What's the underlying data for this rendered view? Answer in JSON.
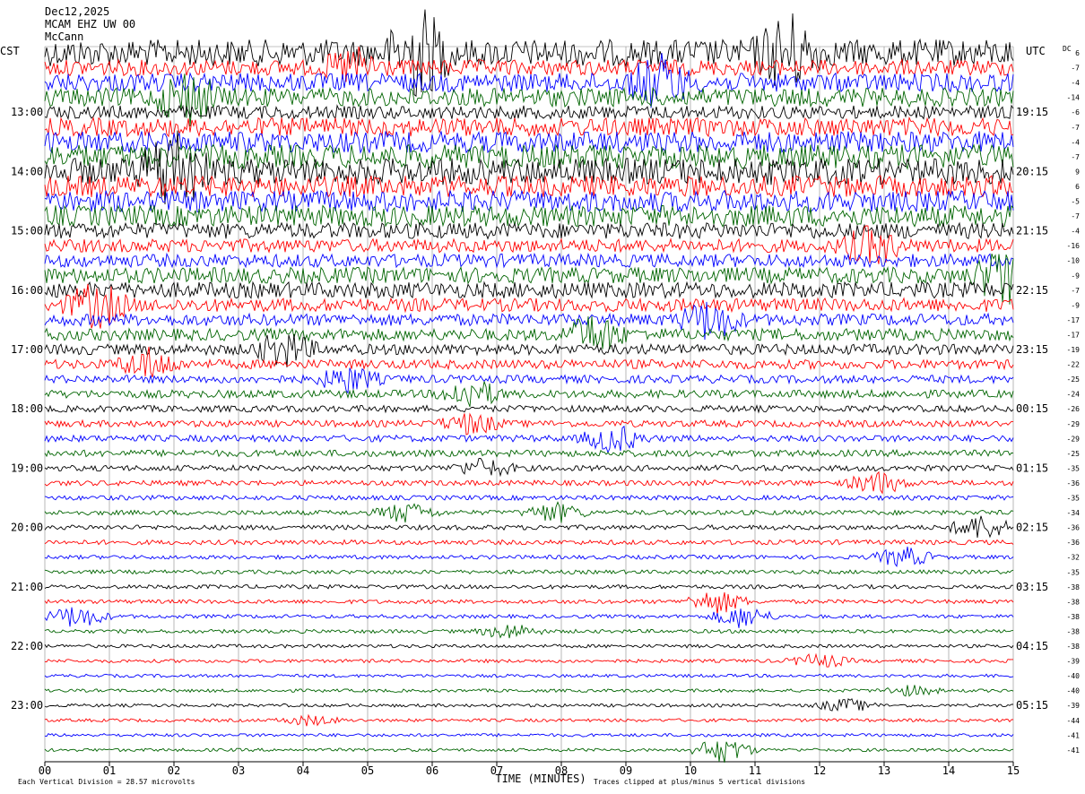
{
  "header": {
    "date": "Dec12,2025",
    "station": "MCAM EHZ UW 00",
    "name": "McCann"
  },
  "chart_data": {
    "type": "line",
    "title": "",
    "xlabel": "TIME (MINUTES)",
    "x_ticks": [
      "00",
      "01",
      "02",
      "03",
      "04",
      "05",
      "06",
      "07",
      "08",
      "09",
      "10",
      "11",
      "12",
      "13",
      "14",
      "15"
    ],
    "xlim": [
      0,
      15
    ],
    "left_axis_label": "CST",
    "right_axis_label": "UTC",
    "dc_label": "DC",
    "left_hour_labels": [
      "13:00",
      "14:00",
      "15:00",
      "16:00",
      "17:00",
      "18:00",
      "19:00",
      "20:00",
      "21:00",
      "22:00",
      "23:00"
    ],
    "right_hour_labels": [
      "19:15",
      "20:15",
      "21:15",
      "22:15",
      "23:15",
      "00:15",
      "01:15",
      "02:15",
      "03:15",
      "04:15",
      "05:15"
    ],
    "trace_colors": [
      "#000000",
      "#ff0000",
      "#0000ff",
      "#006400"
    ],
    "dc_offsets": [
      6,
      -7,
      -4,
      -14,
      -6,
      -7,
      -4,
      -7,
      9,
      6,
      -5,
      -7,
      -4,
      -16,
      -10,
      -9,
      -7,
      -9,
      -17,
      -17,
      -19,
      -22,
      -25,
      -24,
      -26,
      -29,
      -29,
      -25,
      -35,
      -36,
      -35,
      -34,
      -36,
      -36,
      -32,
      -35,
      -38,
      -38,
      -38,
      -38,
      -38,
      -39,
      -40,
      -40,
      -39,
      -44,
      -41,
      -41
    ],
    "trace_amplitudes": [
      1.0,
      0.6,
      0.7,
      0.7,
      0.5,
      0.7,
      0.8,
      0.9,
      1.0,
      0.8,
      0.8,
      0.8,
      0.6,
      0.5,
      0.5,
      0.6,
      0.6,
      0.5,
      0.45,
      0.45,
      0.4,
      0.35,
      0.3,
      0.3,
      0.25,
      0.25,
      0.25,
      0.25,
      0.22,
      0.2,
      0.18,
      0.18,
      0.18,
      0.18,
      0.15,
      0.15,
      0.15,
      0.15,
      0.14,
      0.14,
      0.13,
      0.13,
      0.12,
      0.12,
      0.12,
      0.12,
      0.12,
      0.12
    ],
    "events": [
      {
        "trace": 0,
        "minute": 5.8,
        "amp": 3.0
      },
      {
        "trace": 0,
        "minute": 11.5,
        "amp": 2.5
      },
      {
        "trace": 1,
        "minute": 4.8,
        "amp": 2.0
      },
      {
        "trace": 2,
        "minute": 9.5,
        "amp": 2.5
      },
      {
        "trace": 3,
        "minute": 2.2,
        "amp": 2.5
      },
      {
        "trace": 8,
        "minute": 2.0,
        "amp": 3.0
      },
      {
        "trace": 13,
        "minute": 12.8,
        "amp": 2.5
      },
      {
        "trace": 15,
        "minute": 14.9,
        "amp": 4.0
      },
      {
        "trace": 17,
        "minute": 0.8,
        "amp": 3.0
      },
      {
        "trace": 18,
        "minute": 10.3,
        "amp": 3.0
      },
      {
        "trace": 19,
        "minute": 8.5,
        "amp": 3.0
      },
      {
        "trace": 20,
        "minute": 3.7,
        "amp": 3.0
      },
      {
        "trace": 21,
        "minute": 1.6,
        "amp": 3.0
      },
      {
        "trace": 22,
        "minute": 4.7,
        "amp": 3.0
      },
      {
        "trace": 23,
        "minute": 6.6,
        "amp": 3.5
      },
      {
        "trace": 25,
        "minute": 6.6,
        "amp": 3.0
      },
      {
        "trace": 26,
        "minute": 8.8,
        "amp": 4.0
      },
      {
        "trace": 28,
        "minute": 6.8,
        "amp": 3.0
      },
      {
        "trace": 29,
        "minute": 12.9,
        "amp": 4.0
      },
      {
        "trace": 31,
        "minute": 5.6,
        "amp": 4.0
      },
      {
        "trace": 31,
        "minute": 7.9,
        "amp": 4.0
      },
      {
        "trace": 32,
        "minute": 14.5,
        "amp": 5.0
      },
      {
        "trace": 34,
        "minute": 13.3,
        "amp": 5.0
      },
      {
        "trace": 37,
        "minute": 10.4,
        "amp": 6.0
      },
      {
        "trace": 38,
        "minute": 0.5,
        "amp": 6.0
      },
      {
        "trace": 38,
        "minute": 10.8,
        "amp": 6.0
      },
      {
        "trace": 39,
        "minute": 7.2,
        "amp": 4.0
      },
      {
        "trace": 41,
        "minute": 12.0,
        "amp": 4.0
      },
      {
        "trace": 43,
        "minute": 13.4,
        "amp": 3.0
      },
      {
        "trace": 44,
        "minute": 12.4,
        "amp": 4.0
      },
      {
        "trace": 45,
        "minute": 4.1,
        "amp": 3.0
      },
      {
        "trace": 47,
        "minute": 10.5,
        "amp": 8.0
      }
    ],
    "grid": true
  },
  "footer": {
    "scale_note": "Each Vertical Division =   28.57 microvolts",
    "clip_note": "Traces clipped at plus/minus 5 vertical divisions"
  }
}
